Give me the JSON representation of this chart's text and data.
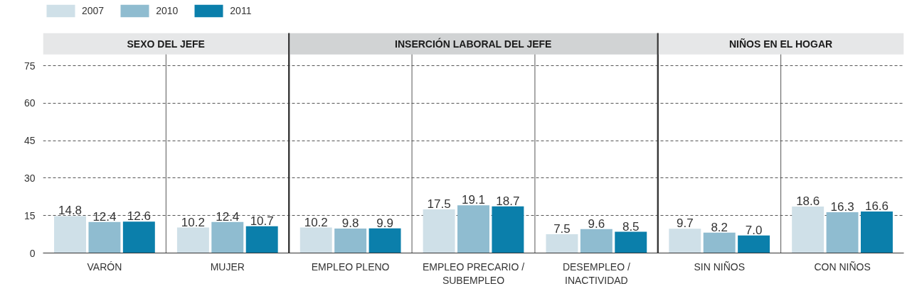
{
  "chart_data": {
    "type": "bar",
    "categories": [
      "VARÓN",
      "MUJER",
      "EMPLEO PLENO",
      "EMPLEO PRECARIO / SUBEMPLEO",
      "DESEMPLEO / INACTIVIDAD",
      "SIN NIÑOS",
      "CON NIÑOS"
    ],
    "series": [
      {
        "name": "2007",
        "color": "#cfe0e8",
        "values": [
          14.8,
          10.2,
          10.2,
          17.5,
          7.5,
          9.7,
          18.6
        ],
        "value_labels": [
          "14.8",
          "10.2",
          "10.2",
          "17.5",
          "7.5",
          "9.7",
          "18.6"
        ]
      },
      {
        "name": "2010",
        "color": "#8fbcd0",
        "values": [
          12.4,
          12.4,
          9.8,
          19.1,
          9.6,
          8.2,
          16.3
        ],
        "value_labels": [
          "12.4",
          "12.4",
          "9.8",
          "19.1",
          "9.6",
          "8.2",
          "16.3"
        ]
      },
      {
        "name": "2011",
        "color": "#0b7fab",
        "values": [
          12.6,
          10.7,
          9.9,
          18.7,
          8.5,
          7.0,
          16.6
        ],
        "value_labels": [
          "12.6",
          "10.7",
          "9.9",
          "18.7",
          "8.5",
          "7.0",
          "16.6"
        ]
      }
    ],
    "bands": [
      {
        "axis": "x",
        "from": "VARÓN",
        "to": "MUJER",
        "label": "SEXO DEL JEFE",
        "color": "#e6e7e8"
      },
      {
        "axis": "x",
        "from": "EMPLEO PLENO",
        "to": "DESEMPLEO / INACTIVIDAD",
        "label": "INSERCIÓN LABORAL DEL JEFE",
        "color": "#d1d3d4"
      },
      {
        "axis": "x",
        "from": "SIN NIÑOS",
        "to": "CON NIÑOS",
        "label": "NIÑOS EN EL HOGAR",
        "color": "#e6e7e8"
      }
    ],
    "ylim": [
      0,
      100
    ],
    "yticks": [
      0,
      15,
      30,
      45,
      60,
      75
    ],
    "grid": "y",
    "legend": "top left"
  }
}
